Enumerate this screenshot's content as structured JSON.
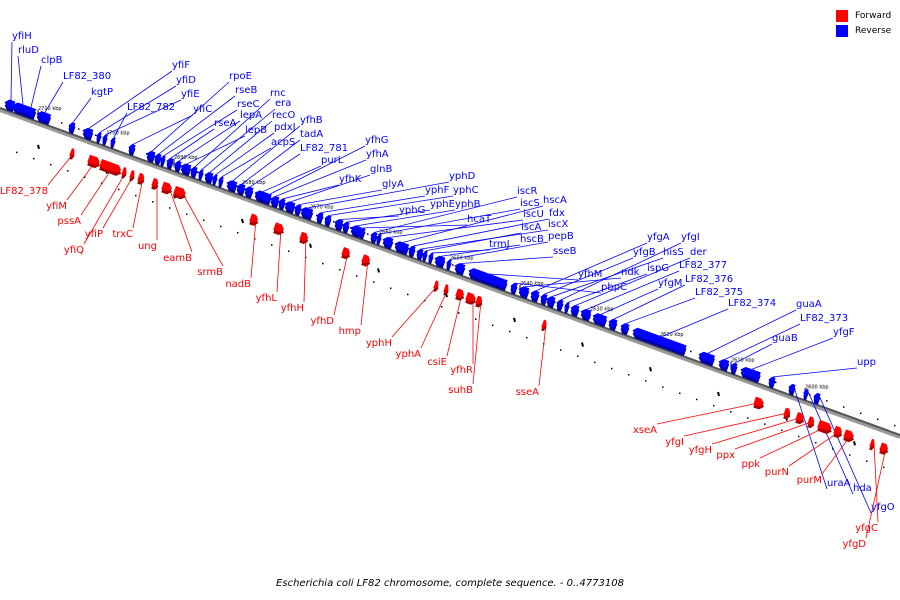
{
  "legend": {
    "forward_label": "Forward",
    "reverse_label": "Reverse",
    "forward_color": "#ff0000",
    "reverse_color": "#0000ff"
  },
  "caption": "Escherichia coli LF82 chromosome, complete sequence. - 0..4773108",
  "axis_ticks": [
    "2710 kbp",
    "2700 kbp",
    "2690 kbp",
    "2680 kbp",
    "2670 kbp",
    "2660 kbp",
    "2650 kbp",
    "2640 kbp",
    "2630 kbp",
    "2620 kbp",
    "2610 kbp",
    "2600 kbp"
  ],
  "reverse_genes": [
    "yfiH",
    "rluD",
    "clpB",
    "LF82_380",
    "kgtP",
    "yfiF",
    "yfiD",
    "yfiE",
    "LF82_782",
    "yfiC",
    "rpoE",
    "rseB",
    "rseC",
    "rseA",
    "lepA",
    "lepB",
    "rnc",
    "era",
    "recO",
    "pdxJ",
    "acpS",
    "yfhB",
    "tadA",
    "LF82_781",
    "purL",
    "yfhG",
    "yfhA",
    "yfhK",
    "glnB",
    "glyA",
    "yphD",
    "yphF",
    "yphC",
    "yphG",
    "yphE",
    "yphB",
    "hcaT",
    "iscR",
    "iscS",
    "iscU",
    "hscA",
    "fdx",
    "iscX",
    "iscA",
    "trmJ",
    "hscB",
    "pepB",
    "sseB",
    "yfhM",
    "pbpC",
    "ndk",
    "yfgA",
    "yfgB",
    "hisS",
    "yfgI",
    "ispG",
    "der",
    "LF82_377",
    "yfgM",
    "LF82_376",
    "LF82_375",
    "LF82_374",
    "guaA",
    "LF82_373",
    "guaB",
    "yfgF",
    "upp",
    "uraA",
    "hda",
    "yfgO"
  ],
  "forward_genes": [
    "LF82_378",
    "yfiM",
    "pssA",
    "yfiQ",
    "yfiP",
    "trxC",
    "ung",
    "eamB",
    "srmB",
    "nadB",
    "yfhL",
    "yfhH",
    "yfhD",
    "hmp",
    "yphH",
    "yphA",
    "csiE",
    "yfhR",
    "suhB",
    "sseA",
    "xseA",
    "yfgI",
    "yfgH",
    "ppx",
    "ppk",
    "purN",
    "purM",
    "yfgC",
    "yfgD"
  ]
}
